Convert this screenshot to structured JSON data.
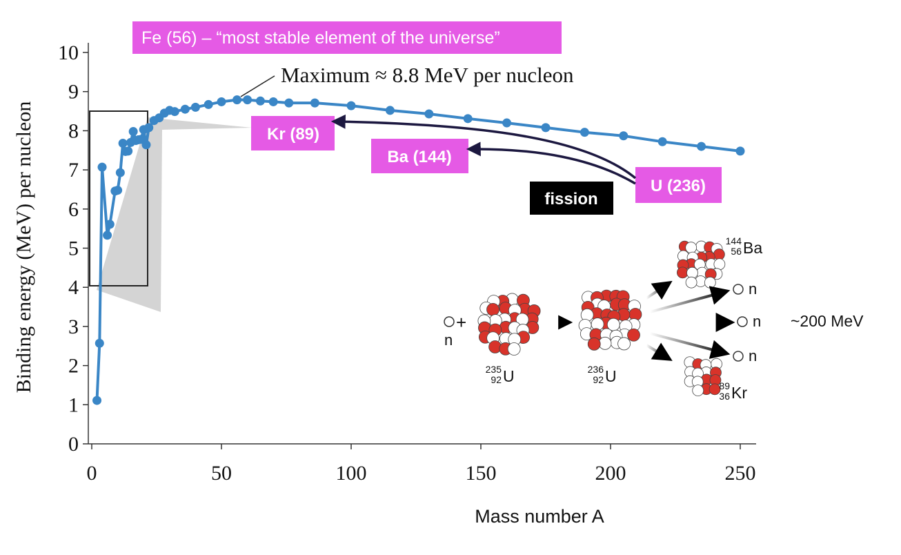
{
  "chart_data": {
    "type": "scatter",
    "title": "",
    "xlabel": "Mass number A",
    "ylabel": "Binding energy (MeV) per nucleon",
    "xlim": [
      0,
      255
    ],
    "ylim": [
      0,
      10.3
    ],
    "xticks": [
      0,
      50,
      100,
      150,
      200,
      250
    ],
    "yticks": [
      0,
      1,
      2,
      3,
      4,
      5,
      6,
      7,
      8,
      9,
      10
    ],
    "series": [
      {
        "name": "Binding energy per nucleon",
        "color": "#3a86c6",
        "x": [
          2,
          3,
          4,
          6,
          7,
          9,
          10,
          11,
          12,
          13,
          14,
          15,
          16,
          17,
          18,
          19,
          20,
          21,
          22,
          24,
          26,
          28,
          30,
          32,
          36,
          40,
          45,
          50,
          56,
          60,
          65,
          70,
          76,
          86,
          100,
          115,
          130,
          145,
          160,
          175,
          190,
          205,
          220,
          235,
          250
        ],
        "y": [
          1.11,
          2.57,
          7.07,
          5.33,
          5.61,
          6.46,
          6.48,
          6.93,
          7.68,
          7.47,
          7.48,
          7.7,
          7.98,
          7.75,
          7.77,
          7.78,
          8.03,
          7.64,
          8.08,
          8.26,
          8.33,
          8.45,
          8.52,
          8.49,
          8.55,
          8.6,
          8.67,
          8.74,
          8.79,
          8.79,
          8.76,
          8.74,
          8.71,
          8.71,
          8.64,
          8.52,
          8.43,
          8.31,
          8.2,
          8.08,
          7.96,
          7.87,
          7.72,
          7.6,
          7.48
        ]
      }
    ],
    "annotations": {
      "fe_label": "Fe (56) – “most stable element of the universe”",
      "maximum_label": "Maximum ≈ 8.8 MeV per nucleon",
      "kr_label": "Kr (89)",
      "ba_label": "Ba (144)",
      "u_label": "U (236)",
      "fission_label": "fission",
      "energy_label": "~200 MeV"
    },
    "colors": {
      "highlight": "#e55ae5",
      "arrow": "#1c1840",
      "fission_box": "#000000",
      "series": "#3a86c6",
      "proton": "#d8332a"
    }
  },
  "diagram": {
    "neutron": "n",
    "u235": {
      "mass": "235",
      "number": "92",
      "symbol": "U"
    },
    "u236": {
      "mass": "236",
      "number": "92",
      "symbol": "U"
    },
    "ba144": {
      "mass": "144",
      "number": "56",
      "symbol": "Ba"
    },
    "kr89": {
      "mass": "89",
      "number": "36",
      "symbol": "Kr"
    },
    "plus": "+"
  }
}
